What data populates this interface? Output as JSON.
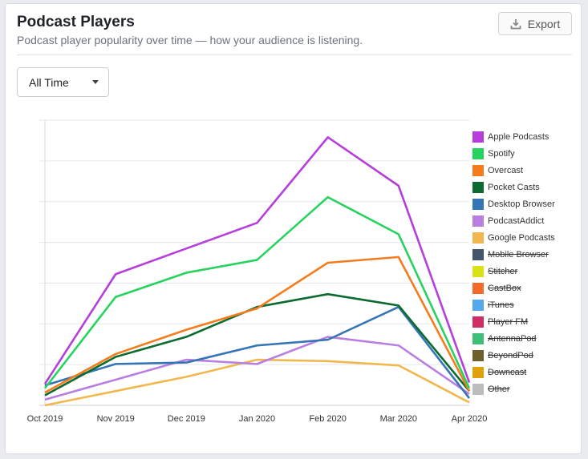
{
  "header": {
    "title": "Podcast Players",
    "subtitle": "Podcast player popularity over time — how your audience is listening.",
    "export_label": "Export",
    "export_icon": "download-icon"
  },
  "filter": {
    "selected": "All Time"
  },
  "chart_data": {
    "type": "line",
    "x": [
      "Oct 2019",
      "Nov 2019",
      "Dec 2019",
      "Jan 2020",
      "Feb 2020",
      "Mar 2020",
      "Apr 2020"
    ],
    "ylim": [
      0,
      100
    ],
    "grid": true,
    "legend_position": "right",
    "series": [
      {
        "name": "Apple Podcasts",
        "color": "#b63fdb",
        "visible": true,
        "values": [
          7.5,
          46,
          55,
          64,
          94,
          77,
          8
        ]
      },
      {
        "name": "Spotify",
        "color": "#27d35f",
        "visible": true,
        "values": [
          6,
          38,
          46.5,
          51,
          73,
          60,
          6
        ]
      },
      {
        "name": "Overcast",
        "color": "#f47c1d",
        "visible": true,
        "values": [
          4.5,
          18,
          26.5,
          34,
          50,
          52,
          5
        ]
      },
      {
        "name": "Pocket Casts",
        "color": "#0c6b2e",
        "visible": true,
        "values": [
          3.5,
          17,
          24,
          34.5,
          39,
          35,
          5
        ]
      },
      {
        "name": "Desktop Browser",
        "color": "#3575b5",
        "visible": true,
        "values": [
          7,
          14.5,
          15,
          21,
          23,
          34.5,
          2.5
        ]
      },
      {
        "name": "PodcastAddict",
        "color": "#b97fe0",
        "visible": true,
        "values": [
          2,
          9,
          16,
          14.5,
          24,
          21,
          4
        ]
      },
      {
        "name": "Google Podcasts",
        "color": "#f0b84e",
        "visible": true,
        "values": [
          0,
          5,
          10,
          16,
          15.5,
          14,
          1
        ]
      },
      {
        "name": "Mobile Browser",
        "color": "#44556b",
        "visible": false
      },
      {
        "name": "Stitcher",
        "color": "#dbe117",
        "visible": false
      },
      {
        "name": "CastBox",
        "color": "#f36a2a",
        "visible": false
      },
      {
        "name": "iTunes",
        "color": "#55a7ee",
        "visible": false
      },
      {
        "name": "Player FM",
        "color": "#d02d63",
        "visible": false
      },
      {
        "name": "AntennaPod",
        "color": "#3fbe78",
        "visible": false
      },
      {
        "name": "BeyondPod",
        "color": "#6e5f2c",
        "visible": false
      },
      {
        "name": "Downcast",
        "color": "#e0a20a",
        "visible": false
      },
      {
        "name": "Other",
        "color": "#bdbdbd",
        "visible": false
      }
    ]
  }
}
